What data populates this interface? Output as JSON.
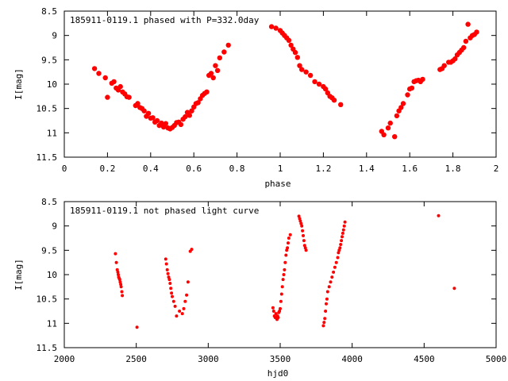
{
  "chart_data": [
    {
      "type": "scatter",
      "title": "185911-0119.1 phased with P=332.0day",
      "xlabel": "phase",
      "ylabel": "I[mag]",
      "xlim": [
        0,
        2
      ],
      "ylim": [
        8.5,
        11.5
      ],
      "y_inverted": true,
      "x_ticks": [
        "0",
        "0.2",
        "0.4",
        "0.6",
        "0.8",
        "1",
        "1.2",
        "1.4",
        "1.6",
        "1.8",
        "2"
      ],
      "y_ticks": [
        "8.5",
        "9",
        "9.5",
        "10",
        "10.5",
        "11",
        "11.5"
      ],
      "grid": false,
      "marker_color": "#ff0000",
      "series": [
        {
          "x": [
            0.14,
            0.16,
            0.19,
            0.2,
            0.22,
            0.23,
            0.24,
            0.25,
            0.26,
            0.27,
            0.28,
            0.29,
            0.3,
            0.33,
            0.34,
            0.35,
            0.36,
            0.37,
            0.38,
            0.39,
            0.4,
            0.41,
            0.42,
            0.43,
            0.44,
            0.45,
            0.46,
            0.47,
            0.48,
            0.49,
            0.5,
            0.51,
            0.52,
            0.53,
            0.54,
            0.55,
            0.56,
            0.57,
            0.58,
            0.59,
            0.6,
            0.61,
            0.62,
            0.63,
            0.64,
            0.65,
            0.66,
            0.67,
            0.68,
            0.69,
            0.7,
            0.71,
            0.72,
            0.74,
            0.76,
            0.96,
            0.98,
            1.0,
            1.01,
            1.02,
            1.03,
            1.04,
            1.05,
            1.06,
            1.07,
            1.08,
            1.09,
            1.1,
            1.12,
            1.14,
            1.16,
            1.18,
            1.2,
            1.21,
            1.22,
            1.23,
            1.24,
            1.25,
            1.28,
            1.47,
            1.48,
            1.5,
            1.51,
            1.53,
            1.54,
            1.55,
            1.56,
            1.57,
            1.59,
            1.6,
            1.61,
            1.62,
            1.63,
            1.64,
            1.65,
            1.66,
            1.74,
            1.75,
            1.76,
            1.78,
            1.79,
            1.8,
            1.81,
            1.82,
            1.83,
            1.84,
            1.85,
            1.86,
            1.87,
            1.88,
            1.89,
            1.9,
            1.91
          ],
          "y": [
            9.68,
            9.78,
            9.87,
            10.27,
            9.98,
            9.95,
            10.08,
            10.12,
            10.05,
            10.16,
            10.2,
            10.26,
            10.27,
            10.44,
            10.4,
            10.48,
            10.5,
            10.55,
            10.66,
            10.6,
            10.7,
            10.69,
            10.78,
            10.75,
            10.85,
            10.8,
            10.88,
            10.81,
            10.9,
            10.92,
            10.89,
            10.85,
            10.79,
            10.78,
            10.83,
            10.72,
            10.67,
            10.58,
            10.64,
            10.55,
            10.47,
            10.4,
            10.38,
            10.3,
            10.23,
            10.19,
            10.16,
            9.82,
            9.78,
            9.87,
            9.62,
            9.72,
            9.46,
            9.34,
            9.2,
            8.82,
            8.85,
            8.9,
            8.95,
            9.0,
            9.05,
            9.1,
            9.2,
            9.28,
            9.35,
            9.45,
            9.62,
            9.7,
            9.75,
            9.82,
            9.95,
            10.0,
            10.05,
            10.1,
            10.18,
            10.25,
            10.28,
            10.33,
            10.42,
            10.97,
            11.04,
            10.9,
            10.8,
            11.08,
            10.65,
            10.55,
            10.48,
            10.4,
            10.22,
            10.1,
            10.08,
            9.95,
            9.93,
            9.92,
            9.95,
            9.9,
            9.7,
            9.68,
            9.62,
            9.55,
            9.55,
            9.52,
            9.48,
            9.4,
            9.35,
            9.3,
            9.25,
            9.12,
            8.77,
            9.05,
            9.0,
            8.98,
            8.93
          ]
        }
      ]
    },
    {
      "type": "scatter",
      "title": "185911-0119.1 not phased light curve",
      "xlabel": "hjd0",
      "ylabel": "I[mag]",
      "xlim": [
        2000,
        5000
      ],
      "ylim": [
        8.5,
        11.5
      ],
      "y_inverted": true,
      "x_ticks": [
        "2000",
        "2500",
        "3000",
        "3500",
        "4000",
        "4500",
        "5000"
      ],
      "y_ticks": [
        "8.5",
        "9",
        "9.5",
        "10",
        "10.5",
        "11",
        "11.5"
      ],
      "grid": false,
      "marker_color": "#ff0000",
      "series": [
        {
          "x": [
            2355,
            2362,
            2368,
            2372,
            2375,
            2378,
            2382,
            2385,
            2388,
            2392,
            2395,
            2400,
            2403,
            2505,
            2705,
            2710,
            2715,
            2720,
            2725,
            2730,
            2735,
            2740,
            2745,
            2750,
            2760,
            2770,
            2780,
            2800,
            2820,
            2830,
            2840,
            2850,
            2860,
            2875,
            2885,
            3450,
            3455,
            3460,
            3465,
            3470,
            3475,
            3478,
            3482,
            3486,
            3490,
            3495,
            3500,
            3505,
            3510,
            3515,
            3520,
            3525,
            3530,
            3535,
            3540,
            3545,
            3550,
            3555,
            3560,
            3570,
            3630,
            3635,
            3640,
            3645,
            3650,
            3655,
            3660,
            3665,
            3670,
            3675,
            3680,
            3800,
            3805,
            3810,
            3815,
            3820,
            3825,
            3830,
            3840,
            3850,
            3860,
            3870,
            3880,
            3890,
            3900,
            3905,
            3910,
            3915,
            3920,
            3925,
            3930,
            3935,
            3940,
            3945,
            3950,
            4600,
            4710
          ],
          "y": [
            9.57,
            9.75,
            9.9,
            9.95,
            10.0,
            10.05,
            10.08,
            10.1,
            10.15,
            10.2,
            10.25,
            10.35,
            10.43,
            11.08,
            9.68,
            9.78,
            9.9,
            9.98,
            10.05,
            10.1,
            10.18,
            10.28,
            10.38,
            10.45,
            10.55,
            10.65,
            10.85,
            10.75,
            10.8,
            10.7,
            10.55,
            10.42,
            10.15,
            9.52,
            9.48,
            10.68,
            10.75,
            10.85,
            10.88,
            10.8,
            10.9,
            10.92,
            10.85,
            10.88,
            10.78,
            10.75,
            10.7,
            10.55,
            10.4,
            10.25,
            10.1,
            10.0,
            9.9,
            9.75,
            9.6,
            9.5,
            9.45,
            9.35,
            9.25,
            9.18,
            8.8,
            8.85,
            8.9,
            8.95,
            9.0,
            9.1,
            9.2,
            9.3,
            9.4,
            9.45,
            9.5,
            11.05,
            10.98,
            10.9,
            10.75,
            10.6,
            10.5,
            10.35,
            10.25,
            10.15,
            10.05,
            9.95,
            9.85,
            9.75,
            9.65,
            9.55,
            9.5,
            9.45,
            9.38,
            9.3,
            9.22,
            9.15,
            9.08,
            9.0,
            8.92,
            8.79,
            10.28
          ]
        }
      ]
    }
  ]
}
